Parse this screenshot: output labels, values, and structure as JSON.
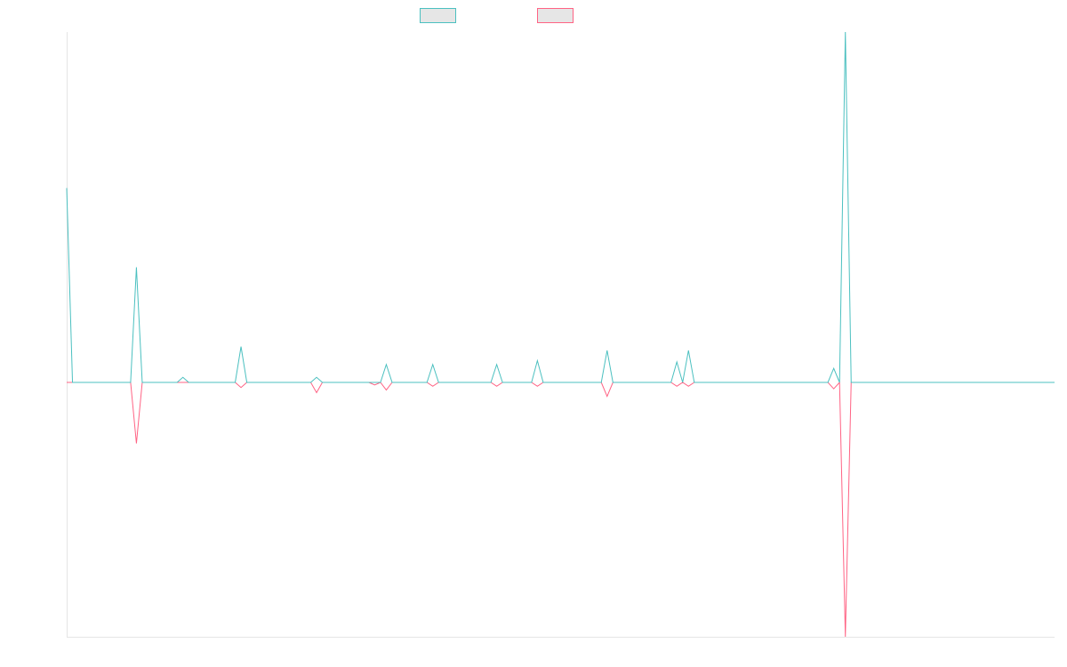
{
  "chart_data": {
    "type": "line",
    "title": "",
    "xlabel": "",
    "ylabel": "",
    "grid": false,
    "legend_position": "top-center",
    "n_points": 171,
    "ylim": [
      -100,
      100
    ],
    "series": [
      {
        "name": "",
        "color": "#4bc0c0",
        "fill": "#e6e6e6",
        "spikes": [
          {
            "index": 0,
            "value": 76
          },
          {
            "index": 12,
            "value": 45
          },
          {
            "index": 20,
            "value": 2
          },
          {
            "index": 30,
            "value": 14
          },
          {
            "index": 43,
            "value": 2
          },
          {
            "index": 55,
            "value": 7
          },
          {
            "index": 63,
            "value": 7
          },
          {
            "index": 74,
            "value": 7
          },
          {
            "index": 81,
            "value": 8.5
          },
          {
            "index": 93,
            "value": 12.5
          },
          {
            "index": 105,
            "value": 8
          },
          {
            "index": 107,
            "value": 12.5
          },
          {
            "index": 132,
            "value": 5.5
          },
          {
            "index": 134,
            "value": 137
          }
        ]
      },
      {
        "name": "",
        "color": "#ff6384",
        "fill": "#e6e6e6",
        "spikes": [
          {
            "index": 12,
            "value": -24
          },
          {
            "index": 30,
            "value": -2
          },
          {
            "index": 43,
            "value": -4
          },
          {
            "index": 53,
            "value": -1
          },
          {
            "index": 55,
            "value": -3
          },
          {
            "index": 63,
            "value": -1.5
          },
          {
            "index": 74,
            "value": -1.5
          },
          {
            "index": 81,
            "value": -1.5
          },
          {
            "index": 93,
            "value": -5.5
          },
          {
            "index": 105,
            "value": -1.5
          },
          {
            "index": 107,
            "value": -1.5
          },
          {
            "index": 132,
            "value": -2.5
          },
          {
            "index": 134,
            "value": -100
          }
        ]
      }
    ]
  }
}
